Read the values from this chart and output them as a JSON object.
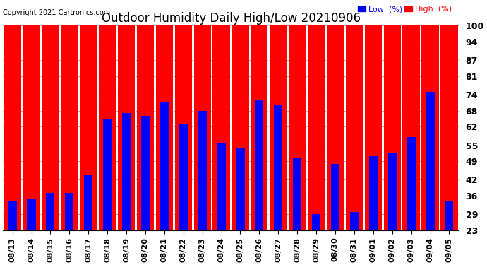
{
  "title": "Outdoor Humidity Daily High/Low 20210906",
  "copyright": "Copyright 2021 Cartronics.com",
  "legend_low": "Low  (%)",
  "legend_high": "High  (%)",
  "background_color": "#ffffff",
  "plot_bg_color": "#ffffff",
  "bar_color_high": "#ff0000",
  "bar_color_low": "#0000ff",
  "ylim_min": 23,
  "ylim_max": 100,
  "yticks": [
    100,
    94,
    87,
    81,
    74,
    68,
    62,
    55,
    49,
    42,
    36,
    29,
    23
  ],
  "grid_color": "#aaaaaa",
  "dates": [
    "08/13",
    "08/14",
    "08/15",
    "08/16",
    "08/17",
    "08/18",
    "08/19",
    "08/20",
    "08/21",
    "08/22",
    "08/23",
    "08/24",
    "08/25",
    "08/26",
    "08/27",
    "08/28",
    "08/29",
    "08/30",
    "08/31",
    "09/01",
    "09/02",
    "09/03",
    "09/04",
    "09/05"
  ],
  "high_values": [
    100,
    100,
    100,
    100,
    100,
    100,
    100,
    100,
    100,
    100,
    100,
    100,
    100,
    100,
    100,
    100,
    100,
    100,
    100,
    100,
    100,
    100,
    100,
    100
  ],
  "low_values": [
    34,
    35,
    37,
    37,
    44,
    65,
    67,
    66,
    71,
    63,
    68,
    56,
    54,
    72,
    70,
    50,
    29,
    48,
    30,
    51,
    52,
    58,
    75,
    34
  ],
  "red_bar_width": 0.9,
  "blue_bar_width": 0.45
}
